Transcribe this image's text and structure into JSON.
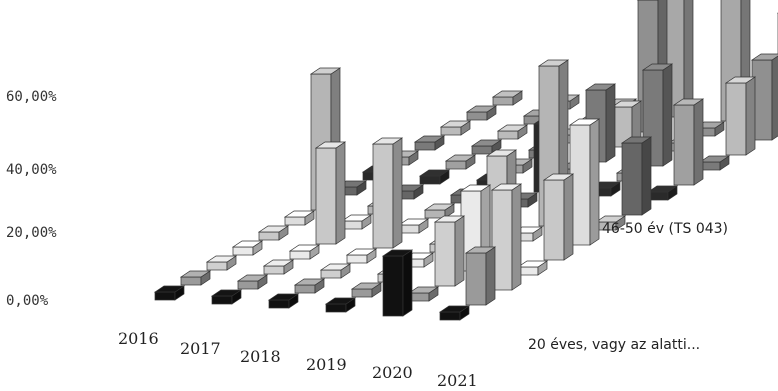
{
  "chart_data": {
    "type": "bar",
    "subtype": "3d-column-grid",
    "categories": [
      "2016",
      "2017",
      "2018",
      "2019",
      "2020",
      "2021"
    ],
    "y_ticks": [
      "60,00%",
      "40,00%",
      "20,00%",
      "0,00%"
    ],
    "y_tick_colors": [
      "#555555",
      "#555555",
      "#aaaaaa",
      "#555555"
    ],
    "ylim": [
      0,
      0.7
    ],
    "series": [
      {
        "name": "20 éves, vagy az alatti...",
        "color": "#111111",
        "values": [
          0.02,
          0.02,
          0.02,
          0.02,
          0.15,
          0.02
        ]
      },
      {
        "name": "",
        "color": "#9a9a9a",
        "values": [
          0.02,
          0.02,
          0.02,
          0.02,
          0.02,
          0.13
        ]
      },
      {
        "name": "",
        "color": "#cfcfcf",
        "values": [
          0.02,
          0.02,
          0.02,
          0.02,
          0.16,
          0.25
        ]
      },
      {
        "name": "",
        "color": "#eaeaea",
        "values": [
          0.02,
          0.02,
          0.02,
          0.02,
          0.2,
          0.02
        ]
      },
      {
        "name": "",
        "color": "#c8c8c8",
        "values": [
          0.02,
          0.24,
          0.26,
          0.02,
          0.25,
          0.2
        ]
      },
      {
        "name": "",
        "color": "#dddddd",
        "values": [
          0.02,
          0.02,
          0.02,
          0.02,
          0.02,
          0.3
        ]
      },
      {
        "name": "",
        "color": "#b5b5b5",
        "values": [
          0.34,
          0.02,
          0.02,
          0.02,
          0.4,
          0.02
        ]
      },
      {
        "name": "",
        "color": "#666666",
        "values": [
          0.02,
          0.02,
          0.02,
          0.02,
          0.02,
          0.18
        ]
      },
      {
        "name": "46-50 év (TS 043)",
        "color": "#2a2a2a",
        "values": [
          0.02,
          0.02,
          0.02,
          0.17,
          0.02,
          0.02
        ]
      },
      {
        "name": "",
        "color": "#a0a0a0",
        "values": [
          0.02,
          0.02,
          0.02,
          0.02,
          0.02,
          0.2
        ]
      },
      {
        "name": "",
        "color": "#7a7a7a",
        "values": [
          0.02,
          0.02,
          0.02,
          0.18,
          0.24,
          0.02
        ]
      },
      {
        "name": "",
        "color": "#bbbbbb",
        "values": [
          0.02,
          0.02,
          0.02,
          0.1,
          0.02,
          0.18
        ]
      },
      {
        "name": "",
        "color": "#909090",
        "values": [
          0.02,
          0.02,
          0.02,
          0.33,
          0.02,
          0.2
        ]
      },
      {
        "name": "",
        "color": "#a8a8a8",
        "values": [
          0.02,
          0.02,
          0.02,
          0.3,
          0.62,
          0.28
        ]
      }
    ]
  }
}
